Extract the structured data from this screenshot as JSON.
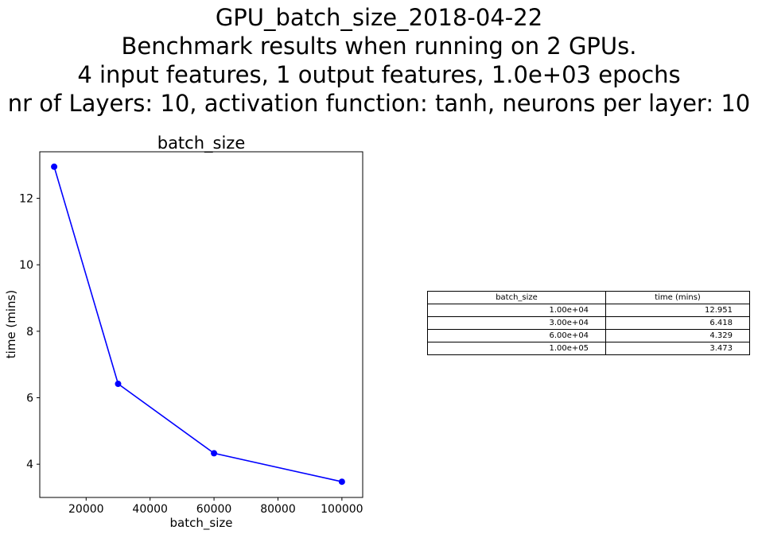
{
  "suptitle": {
    "line1": "GPU_batch_size_2018-04-22",
    "line2": "Benchmark results when running on 2 GPUs.",
    "line3": "4 input features, 1 output features, 1.0e+03 epochs",
    "line4": "nr of Layers: 10, activation function: tanh, neurons per layer: 10"
  },
  "chart_data": {
    "type": "line",
    "title": "batch_size",
    "xlabel": "batch_size",
    "ylabel": "time (mins)",
    "x": [
      10000,
      30000,
      60000,
      100000
    ],
    "series": [
      {
        "values": [
          12.951,
          6.418,
          4.329,
          3.473
        ],
        "color": "#0000ff",
        "marker": "circle"
      }
    ],
    "xlim": [
      5500,
      106500
    ],
    "ylim": [
      3.0,
      13.4
    ],
    "xticks": [
      20000,
      40000,
      60000,
      80000,
      100000
    ],
    "xtick_labels": [
      "20000",
      "40000",
      "60000",
      "80000",
      "100000"
    ],
    "yticks": [
      4,
      6,
      8,
      10,
      12
    ],
    "ytick_labels": [
      "4",
      "6",
      "8",
      "10",
      "12"
    ],
    "grid": false
  },
  "table": {
    "headers": [
      "batch_size",
      "time (mins)"
    ],
    "rows": [
      [
        "1.00e+04",
        "12.951"
      ],
      [
        "3.00e+04",
        "6.418"
      ],
      [
        "6.00e+04",
        "4.329"
      ],
      [
        "1.00e+05",
        "3.473"
      ]
    ]
  }
}
